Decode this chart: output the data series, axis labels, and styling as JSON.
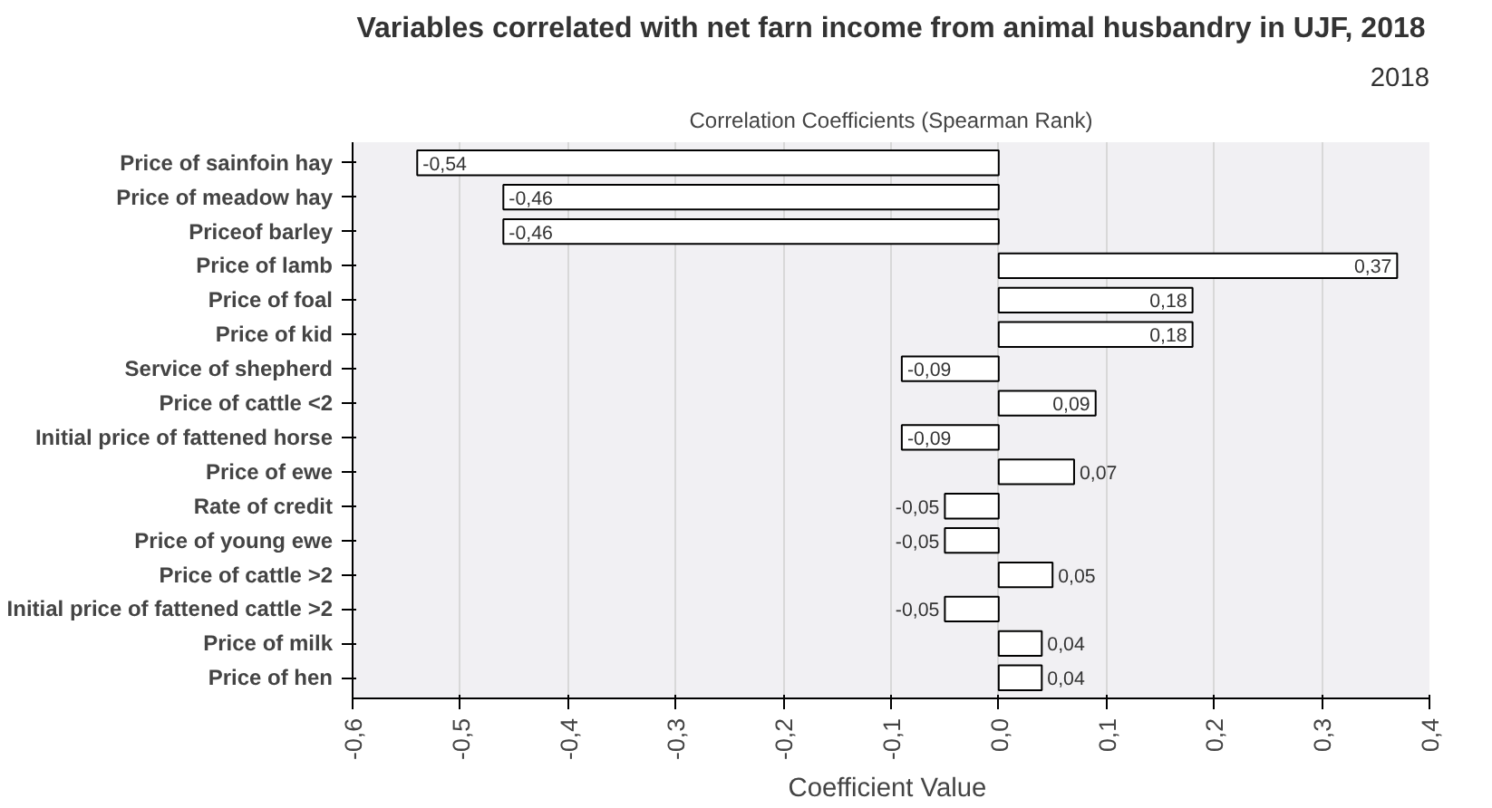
{
  "chart_data": {
    "type": "bar",
    "orientation": "horizontal",
    "title": "Variables correlated with net farn income from animal husbandry in UJF, 2018",
    "subtitle": "Correlation Coefficients (Spearman Rank)",
    "xlabel": "Coefficient  Value",
    "annotations": [
      "2018"
    ],
    "categories": [
      "Price of sainfoin hay",
      "Price of meadow hay",
      "Priceof barley",
      "Price of lamb",
      "Price of foal",
      "Price of kid",
      "Service of shepherd",
      "Price of cattle <2",
      "Initial price of fattened horse",
      "Price of ewe",
      "Rate of credit",
      "Price of young ewe",
      "Price of cattle >2",
      "Initial price of fattened cattle >2",
      "Price of milk",
      "Price of hen"
    ],
    "values": [
      -0.54,
      -0.46,
      -0.46,
      0.37,
      0.18,
      0.18,
      -0.09,
      0.09,
      -0.09,
      0.07,
      -0.05,
      -0.05,
      0.05,
      -0.05,
      0.04,
      0.04
    ],
    "value_labels": [
      "-0,54",
      "-0,46",
      "-0,46",
      "0,37",
      "0,18",
      "0,18",
      "-0,09",
      "0,09",
      "-0,09",
      "0,07",
      "-0,05",
      "-0,05",
      "0,05",
      "-0,05",
      "0,04",
      "0,04"
    ],
    "color": "#ffffff",
    "xlim": [
      -0.6,
      0.4
    ],
    "xticks": [
      {
        "value": -0.6,
        "label": "-0,6"
      },
      {
        "value": -0.5,
        "label": "-0,5"
      },
      {
        "value": -0.4,
        "label": "-0,4"
      },
      {
        "value": -0.3,
        "label": "-0,3"
      },
      {
        "value": -0.2,
        "label": "-0,2"
      },
      {
        "value": -0.1,
        "label": "-0,1"
      },
      {
        "value": 0.0,
        "label": "0,0"
      },
      {
        "value": 0.1,
        "label": "0,1"
      },
      {
        "value": 0.2,
        "label": "0,2"
      },
      {
        "value": 0.3,
        "label": "0,3"
      },
      {
        "value": 0.4,
        "label": "0,4"
      }
    ],
    "grid": "x"
  }
}
